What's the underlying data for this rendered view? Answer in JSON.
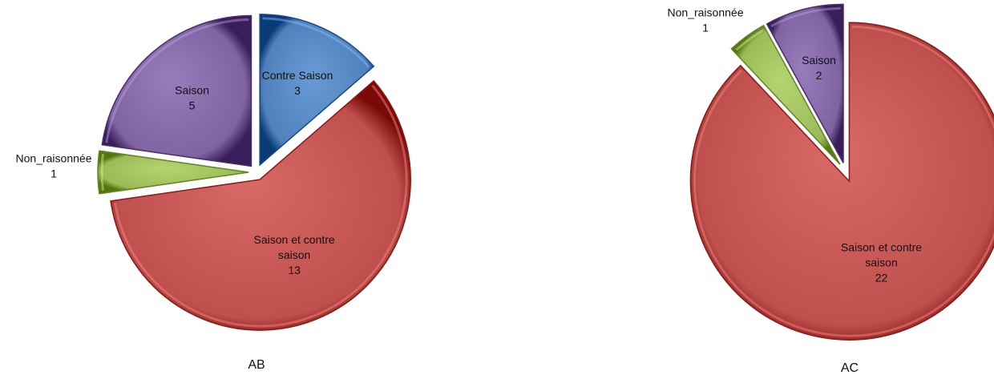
{
  "chart_data": [
    {
      "type": "pie",
      "title": "AB",
      "start_angle_deg": 0,
      "exploded": true,
      "slices": [
        {
          "label": "Contre Saison",
          "value": 3,
          "color": "#4F81BD",
          "label_lines": [
            "Contre Saison",
            "3"
          ]
        },
        {
          "label": "Saison et contre saison",
          "value": 13,
          "color": "#C0504D",
          "label_lines": [
            "Saison et contre",
            "saison",
            "13"
          ]
        },
        {
          "label": "Non_raisonnée",
          "value": 1,
          "color": "#9BBB59",
          "label_lines": [
            "Non_raisonnée",
            "1"
          ],
          "label_outside": true
        },
        {
          "label": "Saison",
          "value": 5,
          "color": "#8064A2",
          "label_lines": [
            "Saison",
            "5"
          ]
        }
      ]
    },
    {
      "type": "pie",
      "title": "AC",
      "start_angle_deg": 0,
      "exploded": true,
      "slices": [
        {
          "label": "Saison et contre saison",
          "value": 22,
          "color": "#C0504D",
          "label_lines": [
            "Saison et contre",
            "saison",
            "22"
          ]
        },
        {
          "label": "Non_raisonnée",
          "value": 1,
          "color": "#9BBB59",
          "label_lines": [
            "Non_raisonnée",
            "1"
          ],
          "label_outside": true
        },
        {
          "label": "Saison",
          "value": 2,
          "color": "#8064A2",
          "label_lines": [
            "Saison",
            "2"
          ]
        }
      ]
    }
  ]
}
